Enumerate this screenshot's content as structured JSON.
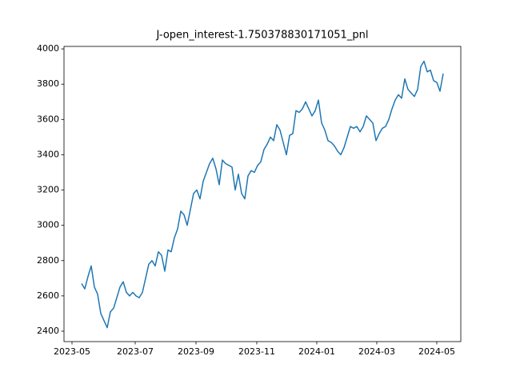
{
  "chart_data": {
    "type": "line",
    "title": "J-open_interest-1.750378830171051_pnl",
    "color": "#1f77b4",
    "values": [
      2670,
      2640,
      2710,
      2770,
      2650,
      2610,
      2500,
      2460,
      2420,
      2510,
      2530,
      2590,
      2650,
      2680,
      2620,
      2600,
      2620,
      2600,
      2590,
      2620,
      2700,
      2780,
      2800,
      2770,
      2850,
      2830,
      2740,
      2860,
      2850,
      2930,
      2980,
      3080,
      3060,
      3000,
      3090,
      3180,
      3200,
      3150,
      3250,
      3300,
      3350,
      3380,
      3320,
      3230,
      3370,
      3350,
      3340,
      3330,
      3200,
      3290,
      3180,
      3150,
      3280,
      3310,
      3300,
      3340,
      3360,
      3430,
      3460,
      3500,
      3480,
      3570,
      3540,
      3470,
      3400,
      3510,
      3520,
      3650,
      3640,
      3660,
      3700,
      3660,
      3620,
      3650,
      3710,
      3580,
      3540,
      3480,
      3470,
      3450,
      3420,
      3400,
      3440,
      3500,
      3560,
      3550,
      3560,
      3530,
      3560,
      3620,
      3600,
      3580,
      3480,
      3520,
      3550,
      3560,
      3600,
      3660,
      3710,
      3740,
      3720,
      3830,
      3770,
      3750,
      3730,
      3770,
      3900,
      3930,
      3870,
      3880,
      3820,
      3810,
      3760,
      3860
    ],
    "xlim": [
      -5.5,
      118.5
    ],
    "xticks": [
      {
        "value": -3,
        "label": "2023-05"
      },
      {
        "value": 16.75,
        "label": "2023-07"
      },
      {
        "value": 35.75,
        "label": "2023-09"
      },
      {
        "value": 54.75,
        "label": "2023-11"
      },
      {
        "value": 73.5,
        "label": "2024-01"
      },
      {
        "value": 92.25,
        "label": "2024-03"
      },
      {
        "value": 111,
        "label": "2024-05"
      }
    ],
    "ylim": [
      2341,
      4014
    ],
    "yticks": [
      2400,
      2600,
      2800,
      3000,
      3200,
      3400,
      3600,
      3800,
      4000
    ]
  }
}
